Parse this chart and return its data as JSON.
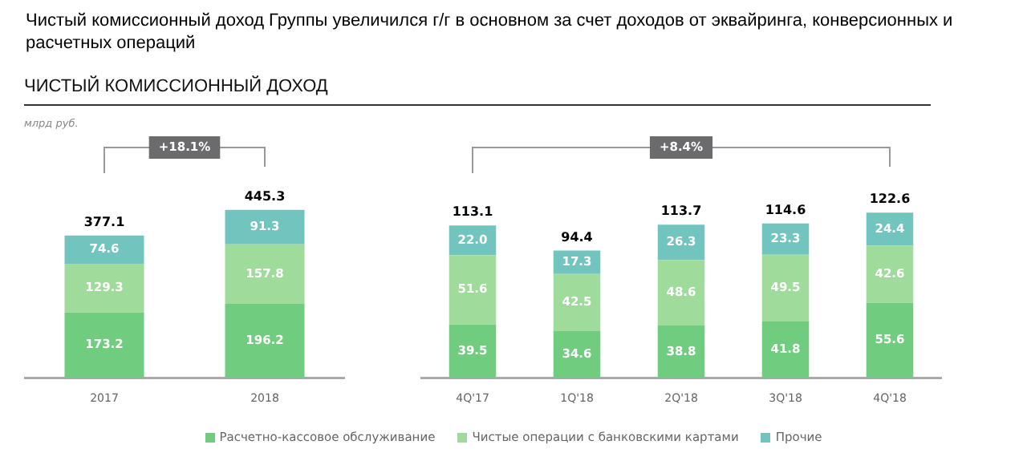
{
  "chart_data": [
    {
      "type": "bar",
      "title": "Чистый комиссионный доход Группы увеличился г/г в основном за счет доходов от эквайринга, конверсионных и расчетных операций",
      "subtitle": "ЧИСТЫЙ КОМИССИОННЫЙ  ДОХОД",
      "ylabel": "млрд руб.",
      "categories": [
        "2017",
        "2018"
      ],
      "stacked": true,
      "data_labels": true,
      "grid": false,
      "legend": "bottom",
      "tick_labels": "x",
      "totals": [
        "377.1",
        "445.3"
      ],
      "annotations": [
        "+18.1%"
      ],
      "series": [
        {
          "name": "Расчетно-кассовое обслуживание",
          "color": "#70cc7e",
          "values": [
            173.2,
            196.2
          ]
        },
        {
          "name": "Чистые операции с банковскими картами",
          "color": "#9fdc9c",
          "values": [
            129.3,
            157.8
          ]
        },
        {
          "name": "Прочие",
          "color": "#72c4bf",
          "values": [
            74.6,
            91.3
          ]
        }
      ]
    },
    {
      "type": "bar",
      "categories": [
        "4Q'17",
        "1Q'18",
        "2Q'18",
        "3Q'18",
        "4Q'18"
      ],
      "stacked": true,
      "data_labels": true,
      "grid": false,
      "tick_labels": "x",
      "totals": [
        "113.1",
        "94.4",
        "113.7",
        "114.6",
        "122.6"
      ],
      "annotations": [
        "+8.4%"
      ],
      "series": [
        {
          "color": "#70cc7e",
          "values": [
            39.5,
            34.6,
            38.8,
            41.8,
            55.6
          ]
        },
        {
          "color": "#9fdc9c",
          "values": [
            51.6,
            42.5,
            48.6,
            49.5,
            42.6
          ]
        },
        {
          "color": "#72c4bf",
          "values": [
            22.0,
            17.3,
            26.3,
            23.3,
            24.4
          ],
          "value_labels": [
            "22.0",
            "17.3",
            "26.3",
            "23.3",
            "24.4"
          ]
        }
      ]
    }
  ]
}
